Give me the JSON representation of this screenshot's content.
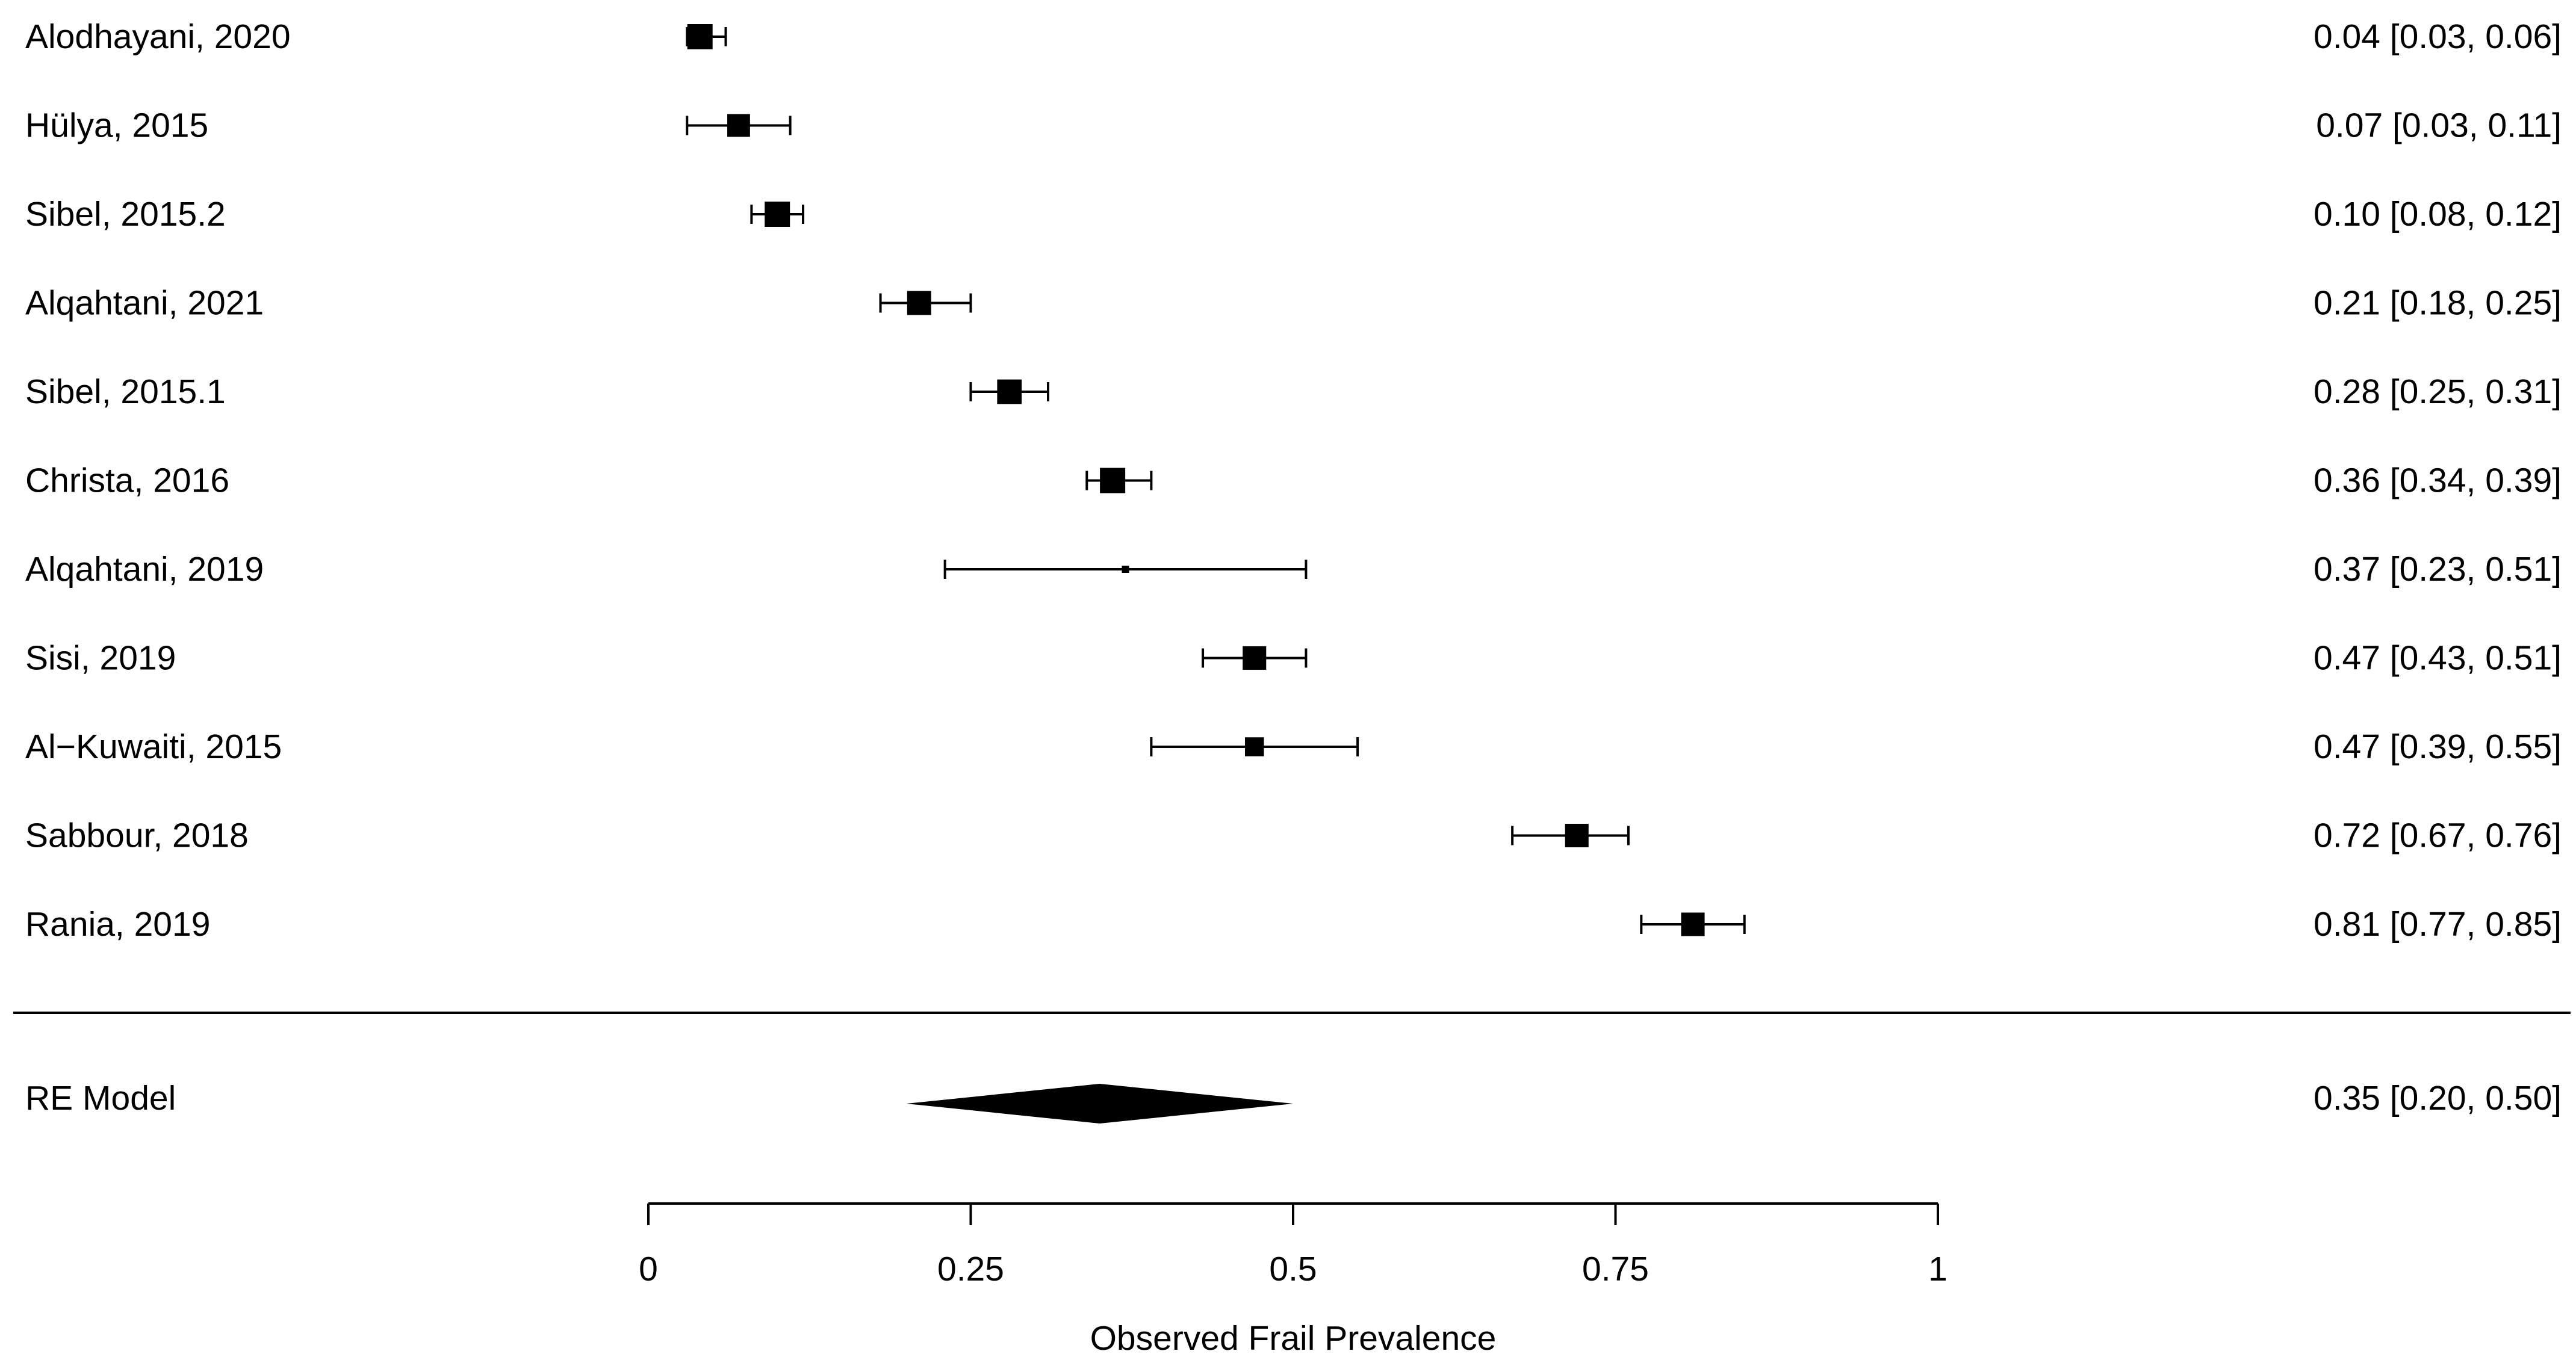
{
  "chart_data": {
    "type": "forest",
    "xlabel": "Observed Frail Prevalence",
    "xlim": [
      0,
      1
    ],
    "xticks": [
      {
        "value": 0,
        "label": "0"
      },
      {
        "value": 0.25,
        "label": "0.25"
      },
      {
        "value": 0.5,
        "label": "0.5"
      },
      {
        "value": 0.75,
        "label": "0.75"
      },
      {
        "value": 1,
        "label": "1"
      }
    ],
    "studies": [
      {
        "label": "Alodhayani, 2020",
        "estimate": 0.04,
        "lower": 0.03,
        "upper": 0.06,
        "weight": 1.0,
        "ci_text": "0.04 [0.03, 0.06]"
      },
      {
        "label": "Hülya, 2015",
        "estimate": 0.07,
        "lower": 0.03,
        "upper": 0.11,
        "weight": 0.9,
        "ci_text": "0.07 [0.03, 0.11]"
      },
      {
        "label": "Sibel, 2015.2",
        "estimate": 0.1,
        "lower": 0.08,
        "upper": 0.12,
        "weight": 1.0,
        "ci_text": "0.10 [0.08, 0.12]"
      },
      {
        "label": "Alqahtani, 2021",
        "estimate": 0.21,
        "lower": 0.18,
        "upper": 0.25,
        "weight": 0.95,
        "ci_text": "0.21 [0.18, 0.25]"
      },
      {
        "label": "Sibel, 2015.1",
        "estimate": 0.28,
        "lower": 0.25,
        "upper": 0.31,
        "weight": 0.97,
        "ci_text": "0.28 [0.25, 0.31]"
      },
      {
        "label": "Christa, 2016",
        "estimate": 0.36,
        "lower": 0.34,
        "upper": 0.39,
        "weight": 1.0,
        "ci_text": "0.36 [0.34, 0.39]"
      },
      {
        "label": "Alqahtani, 2019",
        "estimate": 0.37,
        "lower": 0.23,
        "upper": 0.51,
        "weight": 0.2,
        "ci_text": "0.37 [0.23, 0.51]"
      },
      {
        "label": "Sisi, 2019",
        "estimate": 0.47,
        "lower": 0.43,
        "upper": 0.51,
        "weight": 0.93,
        "ci_text": "0.47 [0.43, 0.51]"
      },
      {
        "label": "Al−Kuwaiti, 2015",
        "estimate": 0.47,
        "lower": 0.39,
        "upper": 0.55,
        "weight": 0.75,
        "ci_text": "0.47 [0.39, 0.55]"
      },
      {
        "label": "Sabbour, 2018",
        "estimate": 0.72,
        "lower": 0.67,
        "upper": 0.76,
        "weight": 0.93,
        "ci_text": "0.72 [0.67, 0.76]"
      },
      {
        "label": "Rania, 2019",
        "estimate": 0.81,
        "lower": 0.77,
        "upper": 0.85,
        "weight": 0.93,
        "ci_text": "0.81 [0.77, 0.85]"
      }
    ],
    "summary": {
      "label": "RE Model",
      "estimate": 0.35,
      "lower": 0.2,
      "upper": 0.5,
      "ci_text": "0.35 [0.20, 0.50]"
    },
    "marker_color": "#000000"
  }
}
